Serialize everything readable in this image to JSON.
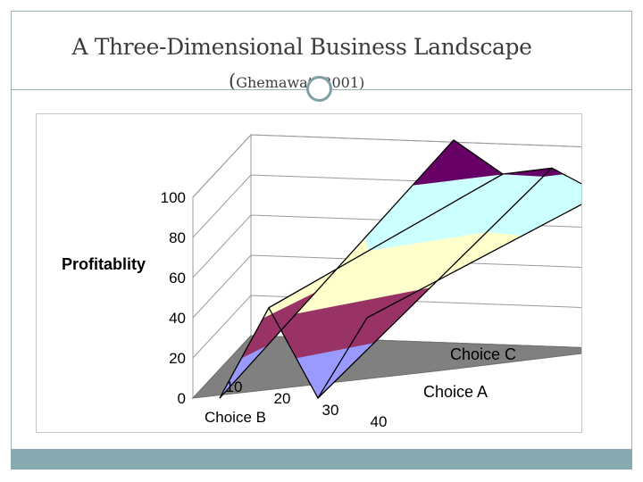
{
  "slide": {
    "title": "A Three-Dimensional Business Landscape",
    "citation_open": "(",
    "citation_text": "Ghemawat, 2001)"
  },
  "colors": {
    "frame": "#9fb3b6",
    "footer": "#87aab1",
    "band_0_20": "#9999ff",
    "band_20_40": "#993366",
    "band_40_60": "#ffffcc",
    "band_60_80": "#ccffff",
    "band_80_100": "#660066",
    "floor": "#808080"
  },
  "chart_data": {
    "type": "surface",
    "zlabel": "Profitablity",
    "zlim": [
      0,
      100
    ],
    "z_ticks": [
      "0",
      "20",
      "40",
      "60",
      "80",
      "100"
    ],
    "x_axis_label": "Choice B",
    "x_ticks": [
      "10",
      "20",
      "30",
      "40"
    ],
    "depth_series": [
      "Choice A",
      "Choice C"
    ],
    "grid": true,
    "bands": [
      "0-20",
      "20-40",
      "40-60",
      "60-80",
      "80-100"
    ],
    "series": [
      {
        "name": "Choice A",
        "values": [
          0,
          45,
          0,
          40
        ]
      },
      {
        "name": "Choice C",
        "values": [
          97,
          80,
          83,
          70
        ]
      }
    ]
  }
}
